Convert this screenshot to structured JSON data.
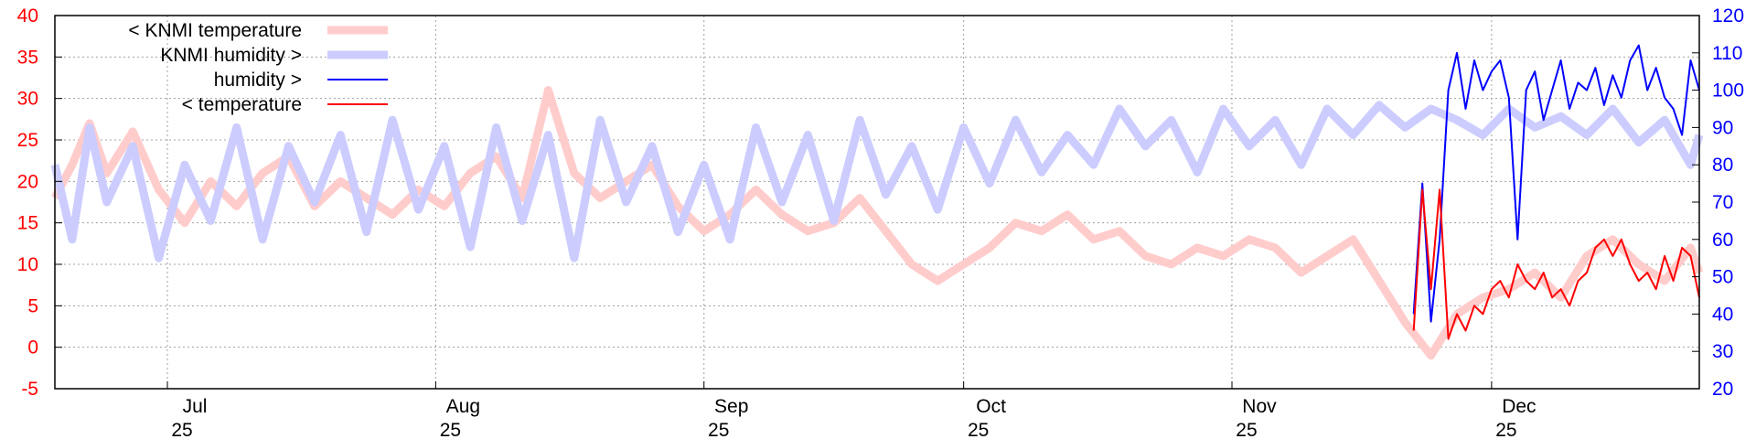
{
  "chart_data": {
    "type": "line",
    "title": "",
    "xlabel": "",
    "ylabel_left": "",
    "ylabel_right": "",
    "x_range": [
      "2025-06-18",
      "2025-12-25"
    ],
    "y_left_range": [
      -5,
      40
    ],
    "y_right_range": [
      20,
      120
    ],
    "y_left_ticks": [
      -5,
      0,
      5,
      10,
      15,
      20,
      25,
      30,
      35,
      40
    ],
    "y_right_ticks": [
      20,
      30,
      40,
      50,
      60,
      70,
      80,
      90,
      100,
      110,
      120
    ],
    "x_ticks": [
      {
        "date": "2025-07-01",
        "month": "Jul",
        "year": "25"
      },
      {
        "date": "2025-08-01",
        "month": "Aug",
        "year": "25"
      },
      {
        "date": "2025-09-01",
        "month": "Sep",
        "year": "25"
      },
      {
        "date": "2025-10-01",
        "month": "Oct",
        "year": "25"
      },
      {
        "date": "2025-11-01",
        "month": "Nov",
        "year": "25"
      },
      {
        "date": "2025-12-01",
        "month": "Dec",
        "year": "25"
      }
    ],
    "grid": true,
    "legend_position": "top-left",
    "series": [
      {
        "name": "< KNMI temperature",
        "axis": "left",
        "color": "#ffcccc",
        "style": "thick",
        "points": [
          [
            "2025-06-18",
            18
          ],
          [
            "2025-06-20",
            22
          ],
          [
            "2025-06-22",
            27
          ],
          [
            "2025-06-24",
            21
          ],
          [
            "2025-06-27",
            26
          ],
          [
            "2025-06-30",
            19
          ],
          [
            "2025-07-03",
            15
          ],
          [
            "2025-07-06",
            20
          ],
          [
            "2025-07-09",
            17
          ],
          [
            "2025-07-12",
            21
          ],
          [
            "2025-07-15",
            23
          ],
          [
            "2025-07-18",
            17
          ],
          [
            "2025-07-21",
            20
          ],
          [
            "2025-07-24",
            18
          ],
          [
            "2025-07-27",
            16
          ],
          [
            "2025-07-30",
            19
          ],
          [
            "2025-08-02",
            17
          ],
          [
            "2025-08-05",
            21
          ],
          [
            "2025-08-08",
            23
          ],
          [
            "2025-08-11",
            18
          ],
          [
            "2025-08-14",
            31
          ],
          [
            "2025-08-17",
            21
          ],
          [
            "2025-08-20",
            18
          ],
          [
            "2025-08-23",
            20
          ],
          [
            "2025-08-26",
            22
          ],
          [
            "2025-08-29",
            17
          ],
          [
            "2025-09-01",
            14
          ],
          [
            "2025-09-04",
            16
          ],
          [
            "2025-09-07",
            19
          ],
          [
            "2025-09-10",
            16
          ],
          [
            "2025-09-13",
            14
          ],
          [
            "2025-09-16",
            15
          ],
          [
            "2025-09-19",
            18
          ],
          [
            "2025-09-22",
            14
          ],
          [
            "2025-09-25",
            10
          ],
          [
            "2025-09-28",
            8
          ],
          [
            "2025-10-01",
            10
          ],
          [
            "2025-10-04",
            12
          ],
          [
            "2025-10-07",
            15
          ],
          [
            "2025-10-10",
            14
          ],
          [
            "2025-10-13",
            16
          ],
          [
            "2025-10-16",
            13
          ],
          [
            "2025-10-19",
            14
          ],
          [
            "2025-10-22",
            11
          ],
          [
            "2025-10-25",
            10
          ],
          [
            "2025-10-28",
            12
          ],
          [
            "2025-10-31",
            11
          ],
          [
            "2025-11-03",
            13
          ],
          [
            "2025-11-06",
            12
          ],
          [
            "2025-11-09",
            9
          ],
          [
            "2025-11-12",
            11
          ],
          [
            "2025-11-15",
            13
          ],
          [
            "2025-11-18",
            8
          ],
          [
            "2025-11-21",
            3
          ],
          [
            "2025-11-24",
            -1
          ],
          [
            "2025-11-27",
            4
          ],
          [
            "2025-11-30",
            6
          ],
          [
            "2025-12-03",
            7
          ],
          [
            "2025-12-06",
            9
          ],
          [
            "2025-12-09",
            6
          ],
          [
            "2025-12-12",
            11
          ],
          [
            "2025-12-15",
            13
          ],
          [
            "2025-12-18",
            10
          ],
          [
            "2025-12-21",
            8
          ],
          [
            "2025-12-24",
            12
          ],
          [
            "2025-12-25",
            9
          ]
        ]
      },
      {
        "name": "KNMI humidity >",
        "axis": "right",
        "color": "#ccccff",
        "style": "thick",
        "points": [
          [
            "2025-06-18",
            80
          ],
          [
            "2025-06-20",
            60
          ],
          [
            "2025-06-22",
            90
          ],
          [
            "2025-06-24",
            70
          ],
          [
            "2025-06-27",
            85
          ],
          [
            "2025-06-30",
            55
          ],
          [
            "2025-07-03",
            80
          ],
          [
            "2025-07-06",
            65
          ],
          [
            "2025-07-09",
            90
          ],
          [
            "2025-07-12",
            60
          ],
          [
            "2025-07-15",
            85
          ],
          [
            "2025-07-18",
            70
          ],
          [
            "2025-07-21",
            88
          ],
          [
            "2025-07-24",
            62
          ],
          [
            "2025-07-27",
            92
          ],
          [
            "2025-07-30",
            68
          ],
          [
            "2025-08-02",
            85
          ],
          [
            "2025-08-05",
            58
          ],
          [
            "2025-08-08",
            90
          ],
          [
            "2025-08-11",
            65
          ],
          [
            "2025-08-14",
            88
          ],
          [
            "2025-08-17",
            55
          ],
          [
            "2025-08-20",
            92
          ],
          [
            "2025-08-23",
            70
          ],
          [
            "2025-08-26",
            85
          ],
          [
            "2025-08-29",
            62
          ],
          [
            "2025-09-01",
            80
          ],
          [
            "2025-09-04",
            60
          ],
          [
            "2025-09-07",
            90
          ],
          [
            "2025-09-10",
            70
          ],
          [
            "2025-09-13",
            88
          ],
          [
            "2025-09-16",
            65
          ],
          [
            "2025-09-19",
            92
          ],
          [
            "2025-09-22",
            72
          ],
          [
            "2025-09-25",
            85
          ],
          [
            "2025-09-28",
            68
          ],
          [
            "2025-10-01",
            90
          ],
          [
            "2025-10-04",
            75
          ],
          [
            "2025-10-07",
            92
          ],
          [
            "2025-10-10",
            78
          ],
          [
            "2025-10-13",
            88
          ],
          [
            "2025-10-16",
            80
          ],
          [
            "2025-10-19",
            95
          ],
          [
            "2025-10-22",
            85
          ],
          [
            "2025-10-25",
            92
          ],
          [
            "2025-10-28",
            78
          ],
          [
            "2025-10-31",
            95
          ],
          [
            "2025-11-03",
            85
          ],
          [
            "2025-11-06",
            92
          ],
          [
            "2025-11-09",
            80
          ],
          [
            "2025-11-12",
            95
          ],
          [
            "2025-11-15",
            88
          ],
          [
            "2025-11-18",
            96
          ],
          [
            "2025-11-21",
            90
          ],
          [
            "2025-11-24",
            95
          ],
          [
            "2025-11-27",
            92
          ],
          [
            "2025-11-30",
            88
          ],
          [
            "2025-12-03",
            95
          ],
          [
            "2025-12-06",
            90
          ],
          [
            "2025-12-09",
            93
          ],
          [
            "2025-12-12",
            88
          ],
          [
            "2025-12-15",
            95
          ],
          [
            "2025-12-18",
            86
          ],
          [
            "2025-12-21",
            92
          ],
          [
            "2025-12-24",
            80
          ],
          [
            "2025-12-25",
            88
          ]
        ]
      },
      {
        "name": "humidity >",
        "axis": "right",
        "color": "#0000ff",
        "style": "thin",
        "points": [
          [
            "2025-11-22",
            40
          ],
          [
            "2025-11-23",
            75
          ],
          [
            "2025-11-24",
            38
          ],
          [
            "2025-11-25",
            60
          ],
          [
            "2025-11-26",
            100
          ],
          [
            "2025-11-27",
            110
          ],
          [
            "2025-11-28",
            95
          ],
          [
            "2025-11-29",
            108
          ],
          [
            "2025-11-30",
            100
          ],
          [
            "2025-12-01",
            105
          ],
          [
            "2025-12-02",
            108
          ],
          [
            "2025-12-03",
            98
          ],
          [
            "2025-12-04",
            60
          ],
          [
            "2025-12-05",
            100
          ],
          [
            "2025-12-06",
            105
          ],
          [
            "2025-12-07",
            92
          ],
          [
            "2025-12-08",
            100
          ],
          [
            "2025-12-09",
            108
          ],
          [
            "2025-12-10",
            95
          ],
          [
            "2025-12-11",
            102
          ],
          [
            "2025-12-12",
            100
          ],
          [
            "2025-12-13",
            106
          ],
          [
            "2025-12-14",
            96
          ],
          [
            "2025-12-15",
            104
          ],
          [
            "2025-12-16",
            98
          ],
          [
            "2025-12-17",
            108
          ],
          [
            "2025-12-18",
            112
          ],
          [
            "2025-12-19",
            100
          ],
          [
            "2025-12-20",
            106
          ],
          [
            "2025-12-21",
            98
          ],
          [
            "2025-12-22",
            95
          ],
          [
            "2025-12-23",
            88
          ],
          [
            "2025-12-24",
            108
          ],
          [
            "2025-12-25",
            100
          ]
        ]
      },
      {
        "name": "< temperature",
        "axis": "left",
        "color": "#ff0000",
        "style": "thin",
        "points": [
          [
            "2025-11-22",
            2
          ],
          [
            "2025-11-23",
            19
          ],
          [
            "2025-11-24",
            7
          ],
          [
            "2025-11-25",
            19
          ],
          [
            "2025-11-26",
            1
          ],
          [
            "2025-11-27",
            4
          ],
          [
            "2025-11-28",
            2
          ],
          [
            "2025-11-29",
            5
          ],
          [
            "2025-11-30",
            4
          ],
          [
            "2025-12-01",
            7
          ],
          [
            "2025-12-02",
            8
          ],
          [
            "2025-12-03",
            6
          ],
          [
            "2025-12-04",
            10
          ],
          [
            "2025-12-05",
            8
          ],
          [
            "2025-12-06",
            7
          ],
          [
            "2025-12-07",
            9
          ],
          [
            "2025-12-08",
            6
          ],
          [
            "2025-12-09",
            7
          ],
          [
            "2025-12-10",
            5
          ],
          [
            "2025-12-11",
            8
          ],
          [
            "2025-12-12",
            9
          ],
          [
            "2025-12-13",
            12
          ],
          [
            "2025-12-14",
            13
          ],
          [
            "2025-12-15",
            11
          ],
          [
            "2025-12-16",
            13
          ],
          [
            "2025-12-17",
            10
          ],
          [
            "2025-12-18",
            8
          ],
          [
            "2025-12-19",
            9
          ],
          [
            "2025-12-20",
            7
          ],
          [
            "2025-12-21",
            11
          ],
          [
            "2025-12-22",
            8
          ],
          [
            "2025-12-23",
            12
          ],
          [
            "2025-12-24",
            11
          ],
          [
            "2025-12-25",
            6
          ]
        ]
      }
    ]
  }
}
